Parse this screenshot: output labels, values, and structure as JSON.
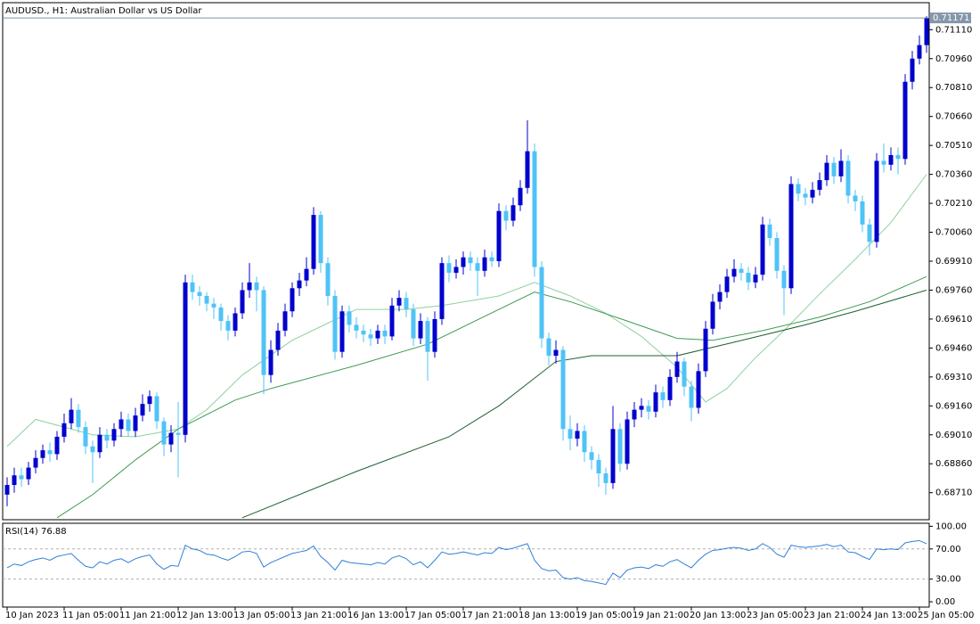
{
  "chart_data": [
    {
      "type": "candlestick",
      "title": "AUDUSD., H1:  Australian Dollar vs US Dollar",
      "up_color": "#0000cd",
      "down_color": "#4fc3f7",
      "open": [
        0.687,
        0.6875,
        0.688,
        0.6878,
        0.6884,
        0.6889,
        0.6893,
        0.6891,
        0.69,
        0.6907,
        0.6914,
        0.6905,
        0.6895,
        0.6892,
        0.6901,
        0.6898,
        0.6904,
        0.6909,
        0.6903,
        0.6911,
        0.6917,
        0.6921,
        0.6908,
        0.6896,
        0.6902,
        0.6901,
        0.698,
        0.6975,
        0.6973,
        0.6969,
        0.6967,
        0.696,
        0.6955,
        0.6964,
        0.6976,
        0.698,
        0.6976,
        0.6932,
        0.6945,
        0.6955,
        0.6965,
        0.6977,
        0.6981,
        0.6987,
        0.7015,
        0.699,
        0.6973,
        0.6944,
        0.6965,
        0.6958,
        0.6955,
        0.6953,
        0.6951,
        0.6955,
        0.6952,
        0.6968,
        0.6972,
        0.6966,
        0.6951,
        0.696,
        0.6944,
        0.6961,
        0.699,
        0.6985,
        0.6988,
        0.6993,
        0.699,
        0.6986,
        0.6993,
        0.6991,
        0.7017,
        0.7012,
        0.702,
        0.7029,
        0.7048,
        0.6988,
        0.6951,
        0.6942,
        0.6945,
        0.6904,
        0.6899,
        0.6903,
        0.6892,
        0.6888,
        0.6881,
        0.6876,
        0.6904,
        0.6886,
        0.6909,
        0.6914,
        0.6916,
        0.6913,
        0.6923,
        0.6919,
        0.6931,
        0.6939,
        0.6926,
        0.6915,
        0.6934,
        0.6956,
        0.697,
        0.6975,
        0.6983,
        0.6987,
        0.6985,
        0.698,
        0.6984,
        0.701,
        0.7003,
        0.6986,
        0.6977,
        0.7031,
        0.7026,
        0.7024,
        0.7028,
        0.7033,
        0.7042,
        0.7035,
        0.7043,
        0.7025,
        0.7022,
        0.701,
        0.7001,
        0.7043,
        0.7041,
        0.7046,
        0.7044,
        0.7084,
        0.7096,
        0.7103
      ],
      "high": [
        0.6879,
        0.6884,
        0.6884,
        0.6887,
        0.6893,
        0.6896,
        0.6897,
        0.6903,
        0.6912,
        0.692,
        0.6917,
        0.6908,
        0.6898,
        0.6905,
        0.6904,
        0.6907,
        0.6913,
        0.6912,
        0.6915,
        0.6922,
        0.6924,
        0.6923,
        0.691,
        0.6906,
        0.6918,
        0.6984,
        0.6984,
        0.6978,
        0.6975,
        0.6972,
        0.6969,
        0.6963,
        0.6967,
        0.698,
        0.699,
        0.6983,
        0.6978,
        0.695,
        0.6959,
        0.6969,
        0.698,
        0.6985,
        0.6993,
        0.7019,
        0.7017,
        0.6993,
        0.6976,
        0.6968,
        0.6968,
        0.6962,
        0.6958,
        0.6956,
        0.6958,
        0.6958,
        0.6972,
        0.6976,
        0.6975,
        0.6969,
        0.6964,
        0.6962,
        0.6965,
        0.6993,
        0.6994,
        0.6992,
        0.6996,
        0.6996,
        0.6993,
        0.6997,
        0.6996,
        0.7021,
        0.702,
        0.7024,
        0.7033,
        0.7064,
        0.7052,
        0.6991,
        0.6954,
        0.695,
        0.6947,
        0.6911,
        0.6907,
        0.6906,
        0.6895,
        0.6891,
        0.6884,
        0.6916,
        0.6907,
        0.6913,
        0.6918,
        0.692,
        0.6919,
        0.6927,
        0.6926,
        0.6935,
        0.6944,
        0.6941,
        0.6929,
        0.6938,
        0.696,
        0.6974,
        0.6979,
        0.6987,
        0.6992,
        0.699,
        0.6988,
        0.6988,
        0.7014,
        0.7013,
        0.7006,
        0.6989,
        0.7035,
        0.7034,
        0.7029,
        0.7032,
        0.7037,
        0.7046,
        0.7045,
        0.7049,
        0.7046,
        0.7028,
        0.7025,
        0.7013,
        0.7047,
        0.7052,
        0.705,
        0.705,
        0.7088,
        0.71,
        0.7108,
        0.7118
      ],
      "low": [
        0.6864,
        0.6871,
        0.6874,
        0.6875,
        0.6881,
        0.6886,
        0.6887,
        0.6888,
        0.6897,
        0.6904,
        0.6902,
        0.6891,
        0.6876,
        0.6889,
        0.6894,
        0.6895,
        0.69,
        0.69,
        0.69,
        0.6908,
        0.6913,
        0.6904,
        0.689,
        0.6892,
        0.6879,
        0.6897,
        0.6971,
        0.6968,
        0.6965,
        0.6961,
        0.6955,
        0.695,
        0.6952,
        0.6961,
        0.6972,
        0.6965,
        0.6922,
        0.6928,
        0.6942,
        0.6952,
        0.6962,
        0.6973,
        0.6978,
        0.6984,
        0.6985,
        0.6968,
        0.694,
        0.6941,
        0.6954,
        0.6951,
        0.6949,
        0.6947,
        0.6948,
        0.6948,
        0.695,
        0.6965,
        0.6962,
        0.6947,
        0.6948,
        0.6929,
        0.6941,
        0.6958,
        0.698,
        0.6982,
        0.6984,
        0.6986,
        0.6973,
        0.6983,
        0.6988,
        0.6988,
        0.7007,
        0.7009,
        0.7017,
        0.7026,
        0.6983,
        0.6946,
        0.6937,
        0.6938,
        0.6898,
        0.6893,
        0.6895,
        0.6887,
        0.6883,
        0.6874,
        0.687,
        0.6873,
        0.6882,
        0.6883,
        0.6905,
        0.691,
        0.6909,
        0.691,
        0.6915,
        0.6916,
        0.6928,
        0.6921,
        0.6908,
        0.6912,
        0.6931,
        0.6953,
        0.6966,
        0.6972,
        0.698,
        0.6981,
        0.6976,
        0.6977,
        0.6981,
        0.6999,
        0.6982,
        0.6963,
        0.6974,
        0.7022,
        0.702,
        0.7021,
        0.7025,
        0.703,
        0.7031,
        0.7032,
        0.7021,
        0.7017,
        0.7006,
        0.6994,
        0.6998,
        0.7037,
        0.7038,
        0.7036,
        0.7041,
        0.708,
        0.7093,
        0.7099
      ],
      "close": [
        0.6875,
        0.688,
        0.6878,
        0.6884,
        0.6889,
        0.6893,
        0.6891,
        0.69,
        0.6907,
        0.6914,
        0.6905,
        0.6895,
        0.6892,
        0.6901,
        0.6898,
        0.6904,
        0.6909,
        0.6903,
        0.6911,
        0.6917,
        0.6921,
        0.6908,
        0.6896,
        0.6902,
        0.6901,
        0.698,
        0.6975,
        0.6973,
        0.6969,
        0.6967,
        0.696,
        0.6955,
        0.6964,
        0.6976,
        0.698,
        0.6976,
        0.6932,
        0.6945,
        0.6955,
        0.6965,
        0.6977,
        0.6981,
        0.6987,
        0.7015,
        0.699,
        0.6973,
        0.6944,
        0.6965,
        0.6958,
        0.6955,
        0.6953,
        0.6951,
        0.6955,
        0.6952,
        0.6968,
        0.6972,
        0.6966,
        0.6951,
        0.696,
        0.6944,
        0.6961,
        0.699,
        0.6985,
        0.6988,
        0.6993,
        0.699,
        0.6986,
        0.6993,
        0.6991,
        0.7017,
        0.7012,
        0.702,
        0.7029,
        0.7048,
        0.6988,
        0.6951,
        0.6942,
        0.6945,
        0.6904,
        0.6899,
        0.6903,
        0.6892,
        0.6888,
        0.6881,
        0.6876,
        0.6904,
        0.6886,
        0.6909,
        0.6914,
        0.6916,
        0.6913,
        0.6923,
        0.6919,
        0.6931,
        0.6939,
        0.6926,
        0.6915,
        0.6934,
        0.6956,
        0.697,
        0.6975,
        0.6983,
        0.6987,
        0.6985,
        0.698,
        0.6984,
        0.701,
        0.7003,
        0.6986,
        0.6977,
        0.7031,
        0.7026,
        0.7024,
        0.7028,
        0.7033,
        0.7042,
        0.7035,
        0.7043,
        0.7025,
        0.7022,
        0.701,
        0.7001,
        0.7043,
        0.7041,
        0.7046,
        0.7044,
        0.7084,
        0.7096,
        0.7103,
        0.71171
      ],
      "series": [
        {
          "color": "#8fd19e",
          "x": [
            0,
            4,
            12,
            18,
            24,
            28,
            33,
            40,
            49,
            56,
            61,
            69,
            74,
            79,
            84,
            89,
            94,
            98,
            101,
            105,
            109,
            114,
            119,
            124,
            129
          ],
          "values": [
            0.6895,
            0.6909,
            0.6901,
            0.69,
            0.6904,
            0.6914,
            0.6932,
            0.695,
            0.6966,
            0.6966,
            0.6968,
            0.6973,
            0.698,
            0.6973,
            0.6964,
            0.6952,
            0.6936,
            0.6918,
            0.6925,
            0.6941,
            0.6955,
            0.6974,
            0.6992,
            0.7011,
            0.7036
          ]
        },
        {
          "color": "#3f9a50",
          "x": [
            7,
            12,
            18,
            24,
            32,
            37,
            49,
            59,
            69,
            74,
            79,
            87,
            94,
            99,
            106,
            114,
            121,
            129
          ],
          "values": [
            0.6858,
            0.687,
            0.6888,
            0.6904,
            0.6919,
            0.6925,
            0.6937,
            0.6948,
            0.6966,
            0.6975,
            0.697,
            0.696,
            0.6951,
            0.695,
            0.6955,
            0.6962,
            0.697,
            0.6983
          ]
        },
        {
          "color": "#1f5f30",
          "x": [
            33,
            49,
            62,
            69,
            77,
            82,
            94,
            102,
            112,
            119,
            129
          ],
          "values": [
            0.6858,
            0.6882,
            0.69,
            0.6916,
            0.6939,
            0.6942,
            0.6942,
            0.6949,
            0.6958,
            0.6965,
            0.6976
          ]
        }
      ],
      "xticks": [
        {
          "value": 0,
          "label": "10 Jan 2023"
        },
        {
          "value": 8,
          "label": "11 Jan 05:00"
        },
        {
          "value": 16,
          "label": "11 Jan 21:00"
        },
        {
          "value": 24,
          "label": "12 Jan 13:00"
        },
        {
          "value": 32,
          "label": "13 Jan 05:00"
        },
        {
          "value": 40,
          "label": "13 Jan 21:00"
        },
        {
          "value": 48,
          "label": "16 Jan 13:00"
        },
        {
          "value": 56,
          "label": "17 Jan 05:00"
        },
        {
          "value": 64,
          "label": "17 Jan 21:00"
        },
        {
          "value": 72,
          "label": "18 Jan 13:00"
        },
        {
          "value": 80,
          "label": "19 Jan 05:00"
        },
        {
          "value": 88,
          "label": "19 Jan 21:00"
        },
        {
          "value": 96,
          "label": "20 Jan 13:00"
        },
        {
          "value": 104,
          "label": "23 Jan 05:00"
        },
        {
          "value": 112,
          "label": "23 Jan 21:00"
        },
        {
          "value": 120,
          "label": "24 Jan 13:00"
        },
        {
          "value": 128,
          "label": "25 Jan 05:00"
        }
      ],
      "ylim": [
        0.6857,
        0.7125
      ],
      "yticks": [
        {
          "value": 0.6871,
          "label": "0.68710"
        },
        {
          "value": 0.6886,
          "label": "0.68860"
        },
        {
          "value": 0.6901,
          "label": "0.69010"
        },
        {
          "value": 0.6916,
          "label": "0.69160"
        },
        {
          "value": 0.6931,
          "label": "0.69310"
        },
        {
          "value": 0.6946,
          "label": "0.69460"
        },
        {
          "value": 0.6961,
          "label": "0.69610"
        },
        {
          "value": 0.6976,
          "label": "0.69760"
        },
        {
          "value": 0.6991,
          "label": "0.69910"
        },
        {
          "value": 0.7006,
          "label": "0.70060"
        },
        {
          "value": 0.7021,
          "label": "0.70210"
        },
        {
          "value": 0.7036,
          "label": "0.70360"
        },
        {
          "value": 0.7051,
          "label": "0.70510"
        },
        {
          "value": 0.7066,
          "label": "0.70660"
        },
        {
          "value": 0.7081,
          "label": "0.70810"
        },
        {
          "value": 0.7096,
          "label": "0.70960"
        },
        {
          "value": 0.7111,
          "label": "0.71110"
        }
      ]
    },
    {
      "type": "line",
      "name": "RSI(14)",
      "color": "#2f7fd8",
      "values": [
        45,
        50,
        48,
        53,
        56,
        58,
        55,
        60,
        62,
        64,
        55,
        47,
        45,
        53,
        50,
        55,
        57,
        52,
        57,
        60,
        62,
        50,
        43,
        48,
        47,
        75,
        70,
        68,
        63,
        62,
        58,
        55,
        60,
        66,
        67,
        64,
        46,
        52,
        56,
        60,
        64,
        66,
        68,
        74,
        60,
        52,
        42,
        55,
        52,
        51,
        50,
        49,
        52,
        50,
        58,
        61,
        57,
        49,
        53,
        45,
        55,
        66,
        63,
        64,
        66,
        64,
        62,
        65,
        64,
        72,
        69,
        71,
        74,
        77,
        55,
        44,
        41,
        42,
        32,
        30,
        32,
        28,
        27,
        25,
        23,
        38,
        32,
        42,
        45,
        46,
        44,
        49,
        47,
        53,
        56,
        50,
        45,
        55,
        63,
        68,
        69,
        71,
        72,
        71,
        68,
        70,
        77,
        72,
        63,
        59,
        75,
        73,
        72,
        73,
        74,
        76,
        73,
        75,
        66,
        65,
        60,
        56,
        70,
        69,
        70,
        69,
        78,
        80,
        81,
        76.88
      ],
      "levels": [
        70,
        30
      ],
      "ylim": [
        -7,
        104
      ],
      "yticks": [
        {
          "value": 100,
          "label": "100.00"
        },
        {
          "value": 70,
          "label": "70.00"
        },
        {
          "value": 30,
          "label": "30.00"
        },
        {
          "value": 0,
          "label": "0.00"
        }
      ]
    }
  ]
}
